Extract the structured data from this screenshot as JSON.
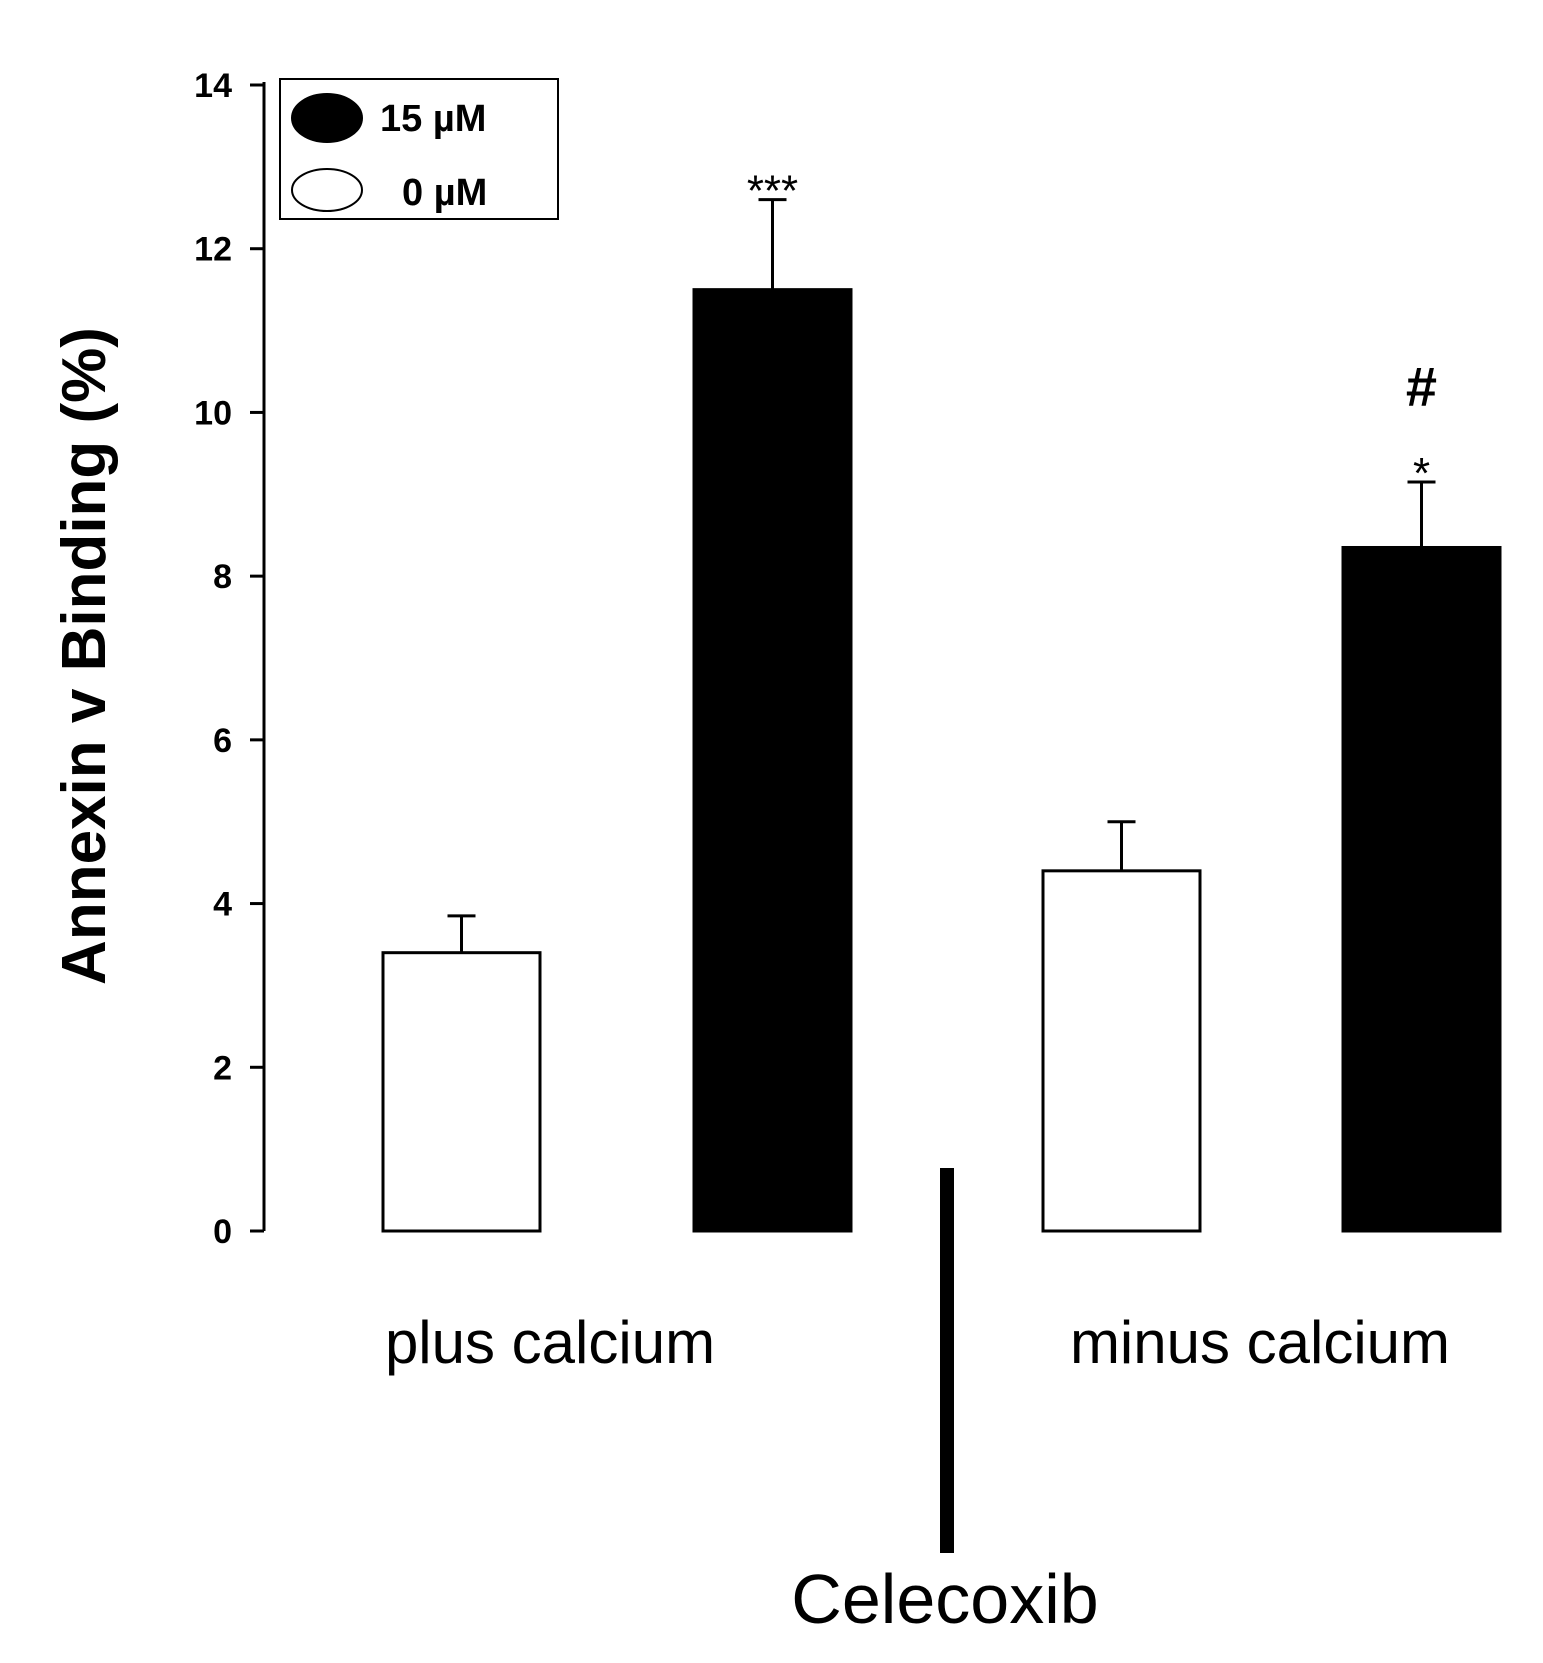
{
  "chart_data": {
    "type": "bar",
    "title": "",
    "xlabel": "",
    "ylabel": "Annexin v Binding (%)",
    "ylim": [
      0,
      14
    ],
    "yticks": [
      0,
      2,
      4,
      6,
      8,
      10,
      12,
      14
    ],
    "groups": [
      "plus calcium",
      "minus calcium"
    ],
    "group_label": "Celecoxib",
    "legend": {
      "placement": "top-left",
      "entries": [
        {
          "label": "15 µM",
          "fill": "#000000"
        },
        {
          "label": "0 µM",
          "fill": "#ffffff"
        }
      ]
    },
    "series": [
      {
        "name": "0 µM",
        "fill": "#ffffff",
        "values": [
          3.4,
          4.4
        ],
        "errors": [
          0.45,
          0.6
        ]
      },
      {
        "name": "15 µM",
        "fill": "#000000",
        "values": [
          11.5,
          8.35
        ],
        "errors": [
          1.1,
          0.8
        ]
      }
    ],
    "annotations": [
      {
        "group": 0,
        "series": 1,
        "lines": [
          "***"
        ]
      },
      {
        "group": 1,
        "series": 1,
        "lines": [
          "#",
          "*"
        ]
      }
    ],
    "grid": false
  }
}
